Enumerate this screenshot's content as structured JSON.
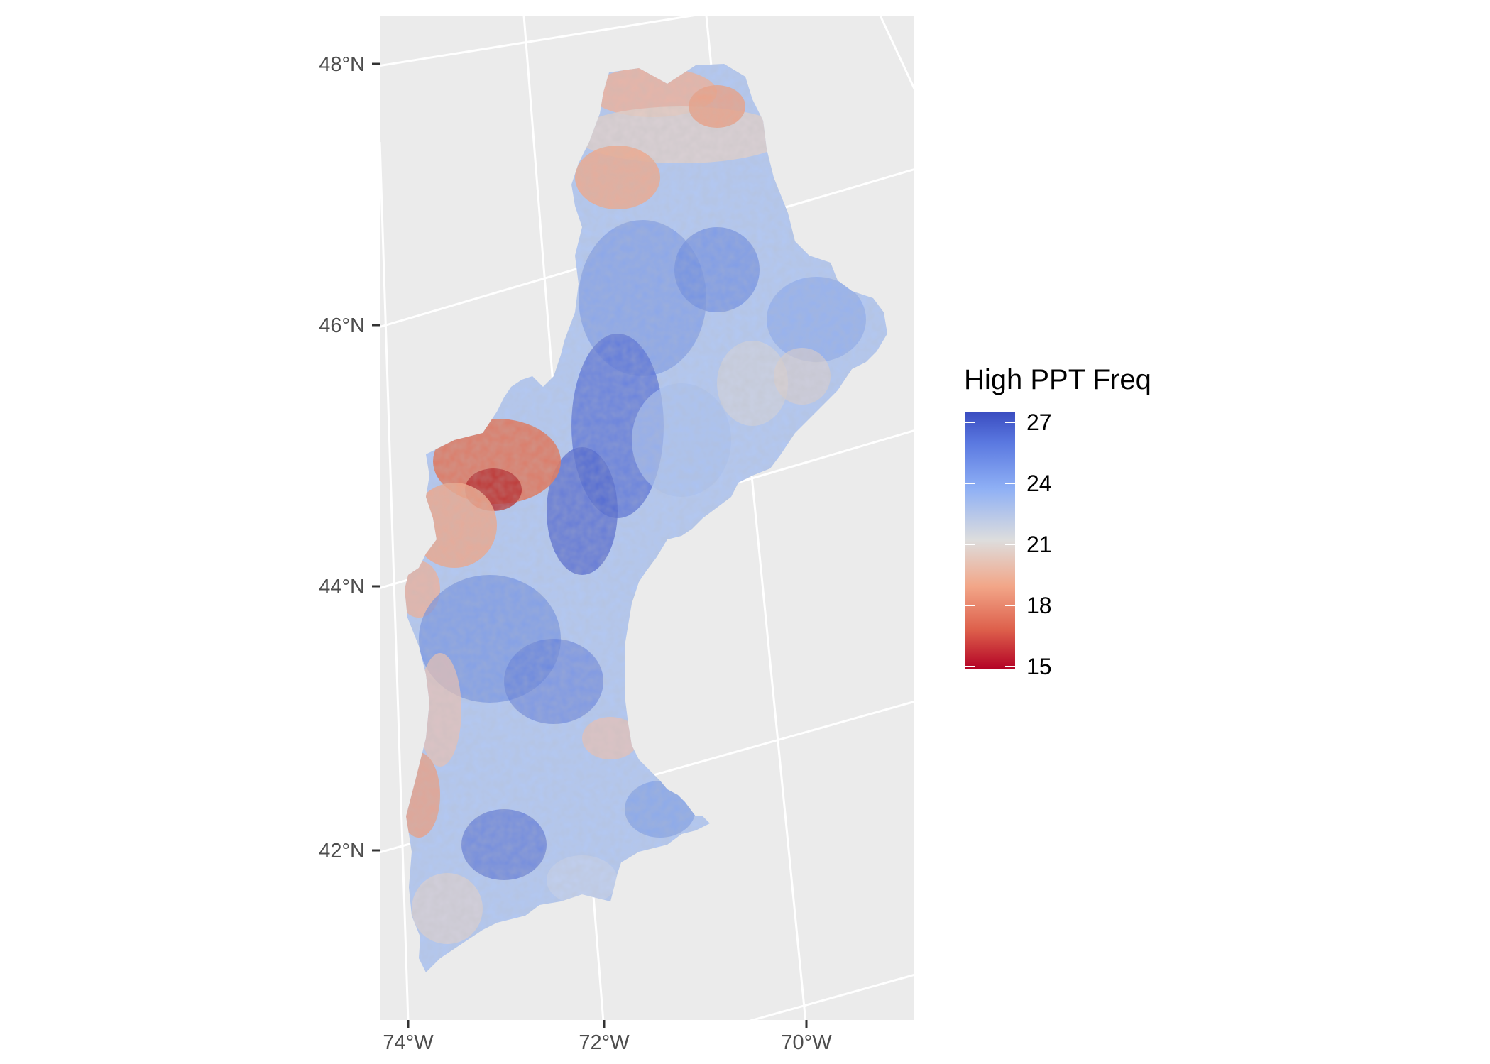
{
  "map": {
    "axis_y_labels": [
      "48°N",
      "46°N",
      "44°N",
      "42°N"
    ],
    "axis_x_labels": [
      "74°W",
      "72°W",
      "70°W"
    ],
    "panel_background": "#ebebeb",
    "grid_color": "#ffffff"
  },
  "legend": {
    "title": "High PPT Freq",
    "breaks": [
      "27",
      "24",
      "21",
      "18",
      "15"
    ],
    "range": [
      15,
      27
    ],
    "colors": {
      "high": "#3a4cc0",
      "mid_high": "#8fb0f5",
      "mid": "#dddddd",
      "mid_low": "#f2a688",
      "low": "#b40426"
    }
  }
}
